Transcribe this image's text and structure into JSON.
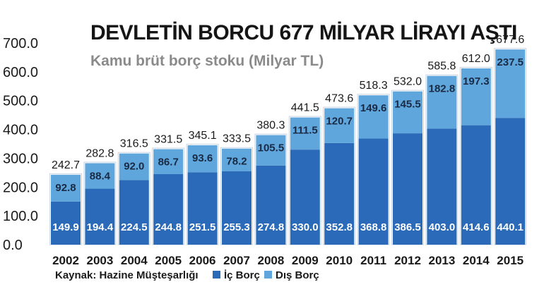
{
  "chart_data": {
    "type": "bar",
    "stacked": true,
    "title": "DEVLETİN BORCU 677 MİLYAR LİRAYI AŞTI",
    "subtitle": "Kamu brüt borç stoku (Milyar TL)",
    "categories": [
      "2002",
      "2003",
      "2004",
      "2005",
      "2006",
      "2007",
      "2008",
      "2009",
      "2010",
      "2011",
      "2012",
      "2013",
      "2014",
      "2015"
    ],
    "series": [
      {
        "name": "İç Borç",
        "color": "#2a6ab8",
        "values": [
          149.9,
          194.4,
          224.5,
          244.8,
          251.5,
          255.3,
          274.8,
          330.0,
          352.8,
          368.8,
          386.5,
          403.0,
          414.6,
          440.1
        ]
      },
      {
        "name": "Dış Borç",
        "color": "#5fa6dc",
        "values": [
          92.8,
          88.4,
          92.0,
          86.7,
          93.6,
          78.2,
          105.5,
          111.5,
          120.7,
          149.6,
          145.5,
          182.8,
          197.3,
          237.5
        ]
      }
    ],
    "totals": [
      242.7,
      282.8,
      316.5,
      331.5,
      345.1,
      333.5,
      380.3,
      441.5,
      473.6,
      518.3,
      532.0,
      585.8,
      612.0,
      677.6
    ],
    "y_ticks": [
      "0.0",
      "100.0",
      "200.0",
      "300.0",
      "400.0",
      "500.0",
      "600.0",
      "700.0"
    ],
    "ylim": [
      0,
      700
    ],
    "grid": false,
    "legend_position": "bottom-right",
    "source": "Kaynak: Hazine Müşteşarlığı"
  }
}
